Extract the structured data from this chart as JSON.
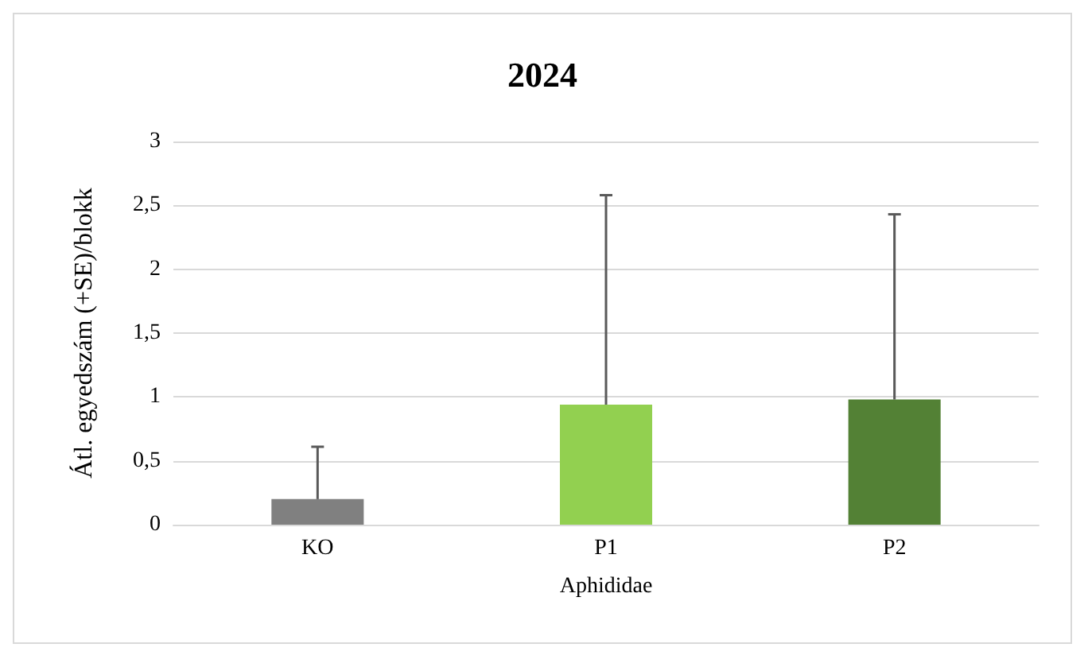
{
  "chart_data": {
    "type": "bar",
    "title": "2024",
    "xlabel": "Aphididae",
    "ylabel": "Átl. egyedszám (+SE)/blokk",
    "categories": [
      "KO",
      "P1",
      "P2"
    ],
    "values": [
      0.2,
      0.94,
      0.98
    ],
    "colors": [
      "#808080",
      "#92d050",
      "#538135"
    ],
    "errors": [
      [
        0.2,
        0.61
      ],
      [
        0.94,
        2.58
      ],
      [
        0.98,
        2.43
      ]
    ],
    "ylim": [
      0,
      3
    ],
    "yticks": [
      0,
      {
        "value": 0.5,
        "label": "0,5"
      },
      1,
      {
        "value": 1.5,
        "label": "1,5"
      },
      2,
      {
        "value": 2.5,
        "label": "2,5"
      },
      3
    ],
    "grid": "y"
  }
}
